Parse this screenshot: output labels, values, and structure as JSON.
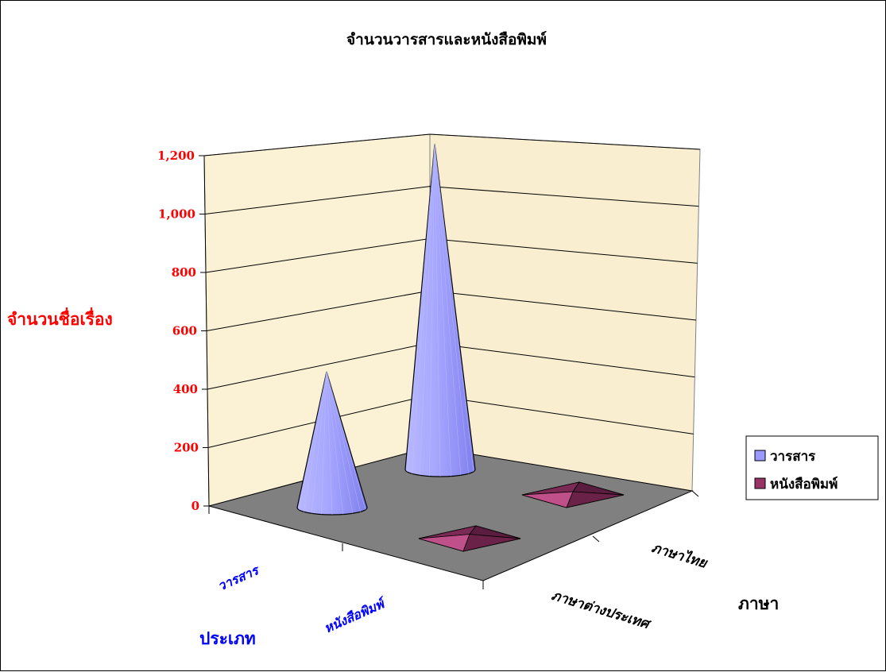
{
  "chart_data": {
    "type": "bar",
    "subtype": "3d-cone",
    "title": "จำนวนวารสารและหนังสือพิมพ์",
    "ylabel": "จำนวนชื่อเรื่อง",
    "ylim": [
      0,
      1200
    ],
    "yticks": [
      "0",
      "200",
      "400",
      "600",
      "800",
      "1,000",
      "1,200"
    ],
    "series_axis_label": "ประเภท",
    "category_axis_label": "ภาษา",
    "categories": [
      "ภาษาไทย",
      "ภาษาต่างประเทศ"
    ],
    "series": [
      {
        "name": "วารสาร",
        "values": [
          1150,
          480
        ],
        "color": "#9999ff"
      },
      {
        "name": "หนังสือพิมพ์",
        "values": [
          10,
          15
        ],
        "color": "#993366"
      }
    ],
    "series_tick_labels": [
      "วารสาร",
      "หนังสือพิมพ์"
    ],
    "legend_position": "right",
    "grid": true,
    "colors": {
      "wall": "#fbf2d6",
      "floor": "#808080",
      "axis_text": "#ff0000",
      "series_text": "#0000ff"
    }
  }
}
